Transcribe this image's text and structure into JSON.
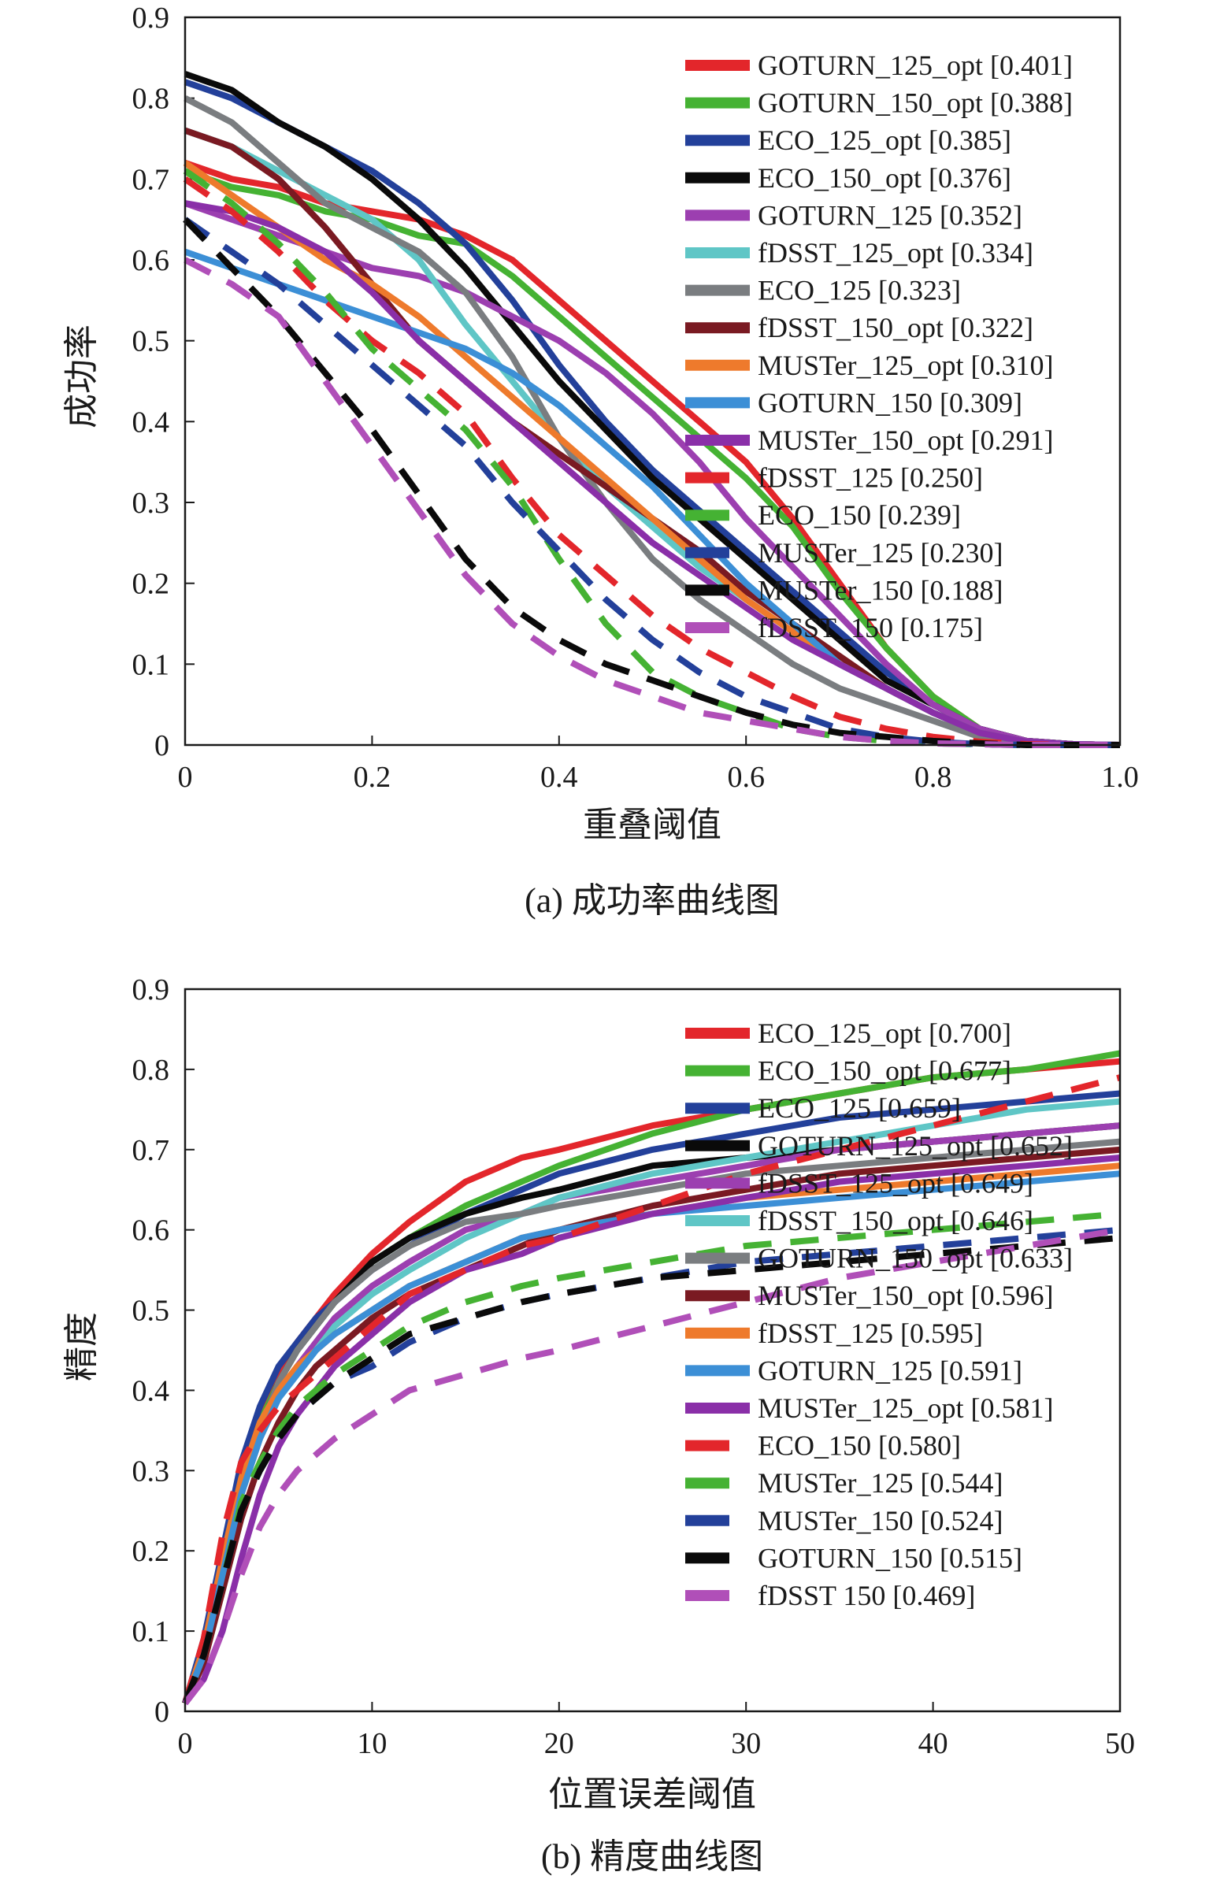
{
  "chart_data": [
    {
      "type": "line",
      "xlabel": "重叠阈值",
      "ylabel": "成功率",
      "caption": "(a) 成功率曲线图",
      "xlim": [
        0,
        1
      ],
      "ylim": [
        0,
        0.9
      ],
      "xticks": [
        "0",
        "0.2",
        "0.4",
        "0.6",
        "0.8",
        "1.0"
      ],
      "yticks": [
        "0",
        "0.1",
        "0.2",
        "0.3",
        "0.4",
        "0.5",
        "0.6",
        "0.7",
        "0.8",
        "0.9"
      ],
      "legend_position": "top-right",
      "x": [
        0,
        0.05,
        0.1,
        0.15,
        0.2,
        0.25,
        0.3,
        0.35,
        0.4,
        0.45,
        0.5,
        0.55,
        0.6,
        0.65,
        0.7,
        0.75,
        0.8,
        0.85,
        0.9,
        0.95,
        1.0
      ],
      "series": [
        {
          "name": "GOTURN_125_opt [0.401]",
          "color": "#e3262b",
          "dash": false,
          "values": [
            0.72,
            0.7,
            0.69,
            0.67,
            0.66,
            0.65,
            0.63,
            0.6,
            0.55,
            0.5,
            0.45,
            0.4,
            0.35,
            0.28,
            0.2,
            0.12,
            0.06,
            0.02,
            0.005,
            0.001,
            0
          ]
        },
        {
          "name": "GOTURN_150_opt [0.388]",
          "color": "#45b233",
          "dash": false,
          "values": [
            0.71,
            0.69,
            0.68,
            0.66,
            0.65,
            0.63,
            0.62,
            0.58,
            0.53,
            0.48,
            0.43,
            0.38,
            0.33,
            0.27,
            0.19,
            0.12,
            0.06,
            0.02,
            0.005,
            0.001,
            0
          ]
        },
        {
          "name": "ECO_125_opt [0.385]",
          "color": "#23409a",
          "dash": false,
          "values": [
            0.82,
            0.8,
            0.77,
            0.74,
            0.71,
            0.67,
            0.62,
            0.55,
            0.47,
            0.4,
            0.34,
            0.29,
            0.24,
            0.19,
            0.14,
            0.09,
            0.05,
            0.02,
            0.005,
            0.001,
            0
          ]
        },
        {
          "name": "ECO_150_opt [0.376]",
          "color": "#0a0a0a",
          "dash": false,
          "values": [
            0.83,
            0.81,
            0.77,
            0.74,
            0.7,
            0.65,
            0.59,
            0.52,
            0.45,
            0.39,
            0.33,
            0.28,
            0.23,
            0.18,
            0.13,
            0.08,
            0.05,
            0.02,
            0.005,
            0.001,
            0
          ]
        },
        {
          "name": "GOTURN_125 [0.352]",
          "color": "#9c3fb0",
          "dash": false,
          "values": [
            0.67,
            0.65,
            0.63,
            0.61,
            0.59,
            0.58,
            0.56,
            0.53,
            0.5,
            0.46,
            0.41,
            0.35,
            0.28,
            0.22,
            0.16,
            0.1,
            0.05,
            0.02,
            0.005,
            0.001,
            0
          ]
        },
        {
          "name": "fDSST_125_opt [0.334]",
          "color": "#5fc6c6",
          "dash": false,
          "values": [
            0.76,
            0.74,
            0.71,
            0.68,
            0.65,
            0.6,
            0.52,
            0.45,
            0.38,
            0.32,
            0.27,
            0.22,
            0.18,
            0.14,
            0.1,
            0.07,
            0.04,
            0.015,
            0.004,
            0.001,
            0
          ]
        },
        {
          "name": "ECO_125 [0.323]",
          "color": "#7a7d80",
          "dash": false,
          "values": [
            0.8,
            0.77,
            0.72,
            0.67,
            0.64,
            0.61,
            0.56,
            0.48,
            0.38,
            0.3,
            0.23,
            0.18,
            0.14,
            0.1,
            0.07,
            0.05,
            0.03,
            0.01,
            0.003,
            0.001,
            0
          ]
        },
        {
          "name": "fDSST_150_opt [0.322]",
          "color": "#7a1a22",
          "dash": false,
          "values": [
            0.76,
            0.74,
            0.7,
            0.64,
            0.57,
            0.5,
            0.45,
            0.4,
            0.36,
            0.32,
            0.28,
            0.24,
            0.19,
            0.15,
            0.11,
            0.07,
            0.04,
            0.015,
            0.004,
            0.001,
            0
          ]
        },
        {
          "name": "MUSTer_125_opt [0.310]",
          "color": "#ee7a2c",
          "dash": false,
          "values": [
            0.72,
            0.68,
            0.64,
            0.6,
            0.57,
            0.53,
            0.48,
            0.43,
            0.38,
            0.33,
            0.28,
            0.23,
            0.18,
            0.14,
            0.1,
            0.07,
            0.04,
            0.015,
            0.004,
            0.001,
            0
          ]
        },
        {
          "name": "GOTURN_150 [0.309]",
          "color": "#3c8fd6",
          "dash": false,
          "values": [
            0.61,
            0.59,
            0.57,
            0.55,
            0.53,
            0.51,
            0.49,
            0.46,
            0.42,
            0.37,
            0.32,
            0.26,
            0.2,
            0.15,
            0.1,
            0.07,
            0.04,
            0.015,
            0.004,
            0.001,
            0
          ]
        },
        {
          "name": "MUSTer_150_opt [0.291]",
          "color": "#8a2fa8",
          "dash": false,
          "values": [
            0.67,
            0.66,
            0.64,
            0.61,
            0.56,
            0.5,
            0.45,
            0.4,
            0.35,
            0.3,
            0.25,
            0.21,
            0.17,
            0.13,
            0.1,
            0.07,
            0.04,
            0.015,
            0.004,
            0.001,
            0
          ]
        },
        {
          "name": "fDSST_125 [0.250]",
          "color": "#e3262b",
          "dash": true,
          "values": [
            0.7,
            0.66,
            0.61,
            0.55,
            0.5,
            0.46,
            0.41,
            0.33,
            0.26,
            0.21,
            0.16,
            0.12,
            0.09,
            0.06,
            0.035,
            0.02,
            0.01,
            0.004,
            0.001,
            0,
            0
          ]
        },
        {
          "name": "ECO_150 [0.239]",
          "color": "#45b233",
          "dash": true,
          "values": [
            0.71,
            0.67,
            0.62,
            0.56,
            0.49,
            0.44,
            0.39,
            0.32,
            0.23,
            0.15,
            0.09,
            0.06,
            0.04,
            0.02,
            0.01,
            0.005,
            0.002,
            0.001,
            0,
            0,
            0
          ]
        },
        {
          "name": "MUSTer_125 [0.230]",
          "color": "#23409a",
          "dash": true,
          "values": [
            0.65,
            0.61,
            0.57,
            0.52,
            0.47,
            0.42,
            0.37,
            0.3,
            0.24,
            0.18,
            0.13,
            0.09,
            0.06,
            0.04,
            0.02,
            0.01,
            0.004,
            0.001,
            0,
            0,
            0
          ]
        },
        {
          "name": "MUSTer_150 [0.188]",
          "color": "#0a0a0a",
          "dash": true,
          "values": [
            0.65,
            0.59,
            0.53,
            0.46,
            0.39,
            0.31,
            0.23,
            0.17,
            0.13,
            0.1,
            0.08,
            0.06,
            0.04,
            0.025,
            0.015,
            0.01,
            0.005,
            0.002,
            0,
            0,
            0
          ]
        },
        {
          "name": "fDSST_150 [0.175]",
          "color": "#b04fb8",
          "dash": true,
          "values": [
            0.6,
            0.57,
            0.53,
            0.45,
            0.37,
            0.29,
            0.21,
            0.15,
            0.11,
            0.08,
            0.06,
            0.04,
            0.03,
            0.02,
            0.01,
            0.005,
            0.002,
            0.001,
            0,
            0,
            0
          ]
        }
      ]
    },
    {
      "type": "line",
      "xlabel": "位置误差阈值",
      "ylabel": "精度",
      "caption": "(b) 精度曲线图",
      "xlim": [
        0,
        50
      ],
      "ylim": [
        0,
        0.9
      ],
      "xticks": [
        "0",
        "10",
        "20",
        "30",
        "40",
        "50"
      ],
      "yticks": [
        "0",
        "0.1",
        "0.2",
        "0.3",
        "0.4",
        "0.5",
        "0.6",
        "0.7",
        "0.8",
        "0.9"
      ],
      "legend_position": "top-right",
      "x": [
        0,
        1,
        2,
        3,
        4,
        5,
        6,
        7,
        8,
        10,
        12,
        15,
        18,
        20,
        25,
        30,
        35,
        40,
        45,
        50
      ],
      "series": [
        {
          "name": "ECO_125_opt [0.700]",
          "color": "#e3262b",
          "dash": false,
          "values": [
            0.01,
            0.08,
            0.19,
            0.3,
            0.37,
            0.42,
            0.46,
            0.49,
            0.52,
            0.57,
            0.61,
            0.66,
            0.69,
            0.7,
            0.73,
            0.75,
            0.77,
            0.79,
            0.8,
            0.81
          ]
        },
        {
          "name": "ECO_150_opt [0.677]",
          "color": "#45b233",
          "dash": false,
          "values": [
            0.01,
            0.08,
            0.19,
            0.29,
            0.36,
            0.41,
            0.45,
            0.48,
            0.51,
            0.56,
            0.59,
            0.63,
            0.66,
            0.68,
            0.72,
            0.75,
            0.77,
            0.79,
            0.8,
            0.82
          ]
        },
        {
          "name": "ECO_125 [0.659]",
          "color": "#23409a",
          "dash": false,
          "values": [
            0.01,
            0.09,
            0.2,
            0.31,
            0.38,
            0.43,
            0.46,
            0.49,
            0.51,
            0.55,
            0.58,
            0.62,
            0.65,
            0.67,
            0.7,
            0.72,
            0.74,
            0.75,
            0.76,
            0.77
          ]
        },
        {
          "name": "GOTURN_125_opt [0.652]",
          "color": "#0a0a0a",
          "dash": false,
          "values": [
            0.01,
            0.07,
            0.17,
            0.27,
            0.35,
            0.41,
            0.45,
            0.48,
            0.51,
            0.56,
            0.59,
            0.62,
            0.64,
            0.65,
            0.68,
            0.69,
            0.7,
            0.71,
            0.72,
            0.73
          ]
        },
        {
          "name": "fDSST_125_opt [0.649]",
          "color": "#9c3fb0",
          "dash": false,
          "values": [
            0.01,
            0.07,
            0.17,
            0.27,
            0.34,
            0.39,
            0.43,
            0.46,
            0.49,
            0.53,
            0.56,
            0.6,
            0.62,
            0.64,
            0.66,
            0.68,
            0.7,
            0.71,
            0.72,
            0.73
          ]
        },
        {
          "name": "fDSST_150_opt [0.646]",
          "color": "#5fc6c6",
          "dash": false,
          "values": [
            0.01,
            0.07,
            0.17,
            0.27,
            0.34,
            0.39,
            0.42,
            0.45,
            0.48,
            0.52,
            0.55,
            0.59,
            0.62,
            0.64,
            0.67,
            0.69,
            0.71,
            0.73,
            0.75,
            0.76
          ]
        },
        {
          "name": "GOTURN_150_opt [0.633]",
          "color": "#7a7d80",
          "dash": false,
          "values": [
            0.01,
            0.07,
            0.17,
            0.27,
            0.35,
            0.41,
            0.45,
            0.48,
            0.51,
            0.55,
            0.58,
            0.61,
            0.62,
            0.63,
            0.65,
            0.67,
            0.68,
            0.69,
            0.7,
            0.71
          ]
        },
        {
          "name": "MUSTer_150_opt [0.596]",
          "color": "#7a1a22",
          "dash": false,
          "values": [
            0.01,
            0.06,
            0.15,
            0.24,
            0.31,
            0.36,
            0.4,
            0.43,
            0.45,
            0.49,
            0.52,
            0.55,
            0.58,
            0.6,
            0.63,
            0.65,
            0.67,
            0.68,
            0.69,
            0.7
          ]
        },
        {
          "name": "fDSST_125 [0.595]",
          "color": "#ee7a2c",
          "dash": false,
          "values": [
            0.01,
            0.08,
            0.19,
            0.29,
            0.36,
            0.4,
            0.43,
            0.45,
            0.47,
            0.5,
            0.53,
            0.56,
            0.59,
            0.6,
            0.62,
            0.64,
            0.65,
            0.66,
            0.67,
            0.68
          ]
        },
        {
          "name": "GOTURN_125 [0.591]",
          "color": "#3c8fd6",
          "dash": false,
          "values": [
            0.01,
            0.07,
            0.17,
            0.27,
            0.34,
            0.39,
            0.42,
            0.45,
            0.47,
            0.5,
            0.53,
            0.56,
            0.59,
            0.6,
            0.62,
            0.63,
            0.64,
            0.65,
            0.66,
            0.67
          ]
        },
        {
          "name": "MUSTer_125_opt [0.581]",
          "color": "#8a2fa8",
          "dash": false,
          "values": [
            0.01,
            0.04,
            0.1,
            0.19,
            0.27,
            0.33,
            0.37,
            0.4,
            0.43,
            0.47,
            0.51,
            0.55,
            0.57,
            0.59,
            0.62,
            0.64,
            0.66,
            0.67,
            0.68,
            0.69
          ]
        },
        {
          "name": "ECO_150 [0.580]",
          "color": "#e3262b",
          "dash": true,
          "values": [
            0.01,
            0.09,
            0.22,
            0.31,
            0.35,
            0.38,
            0.4,
            0.42,
            0.44,
            0.48,
            0.52,
            0.55,
            0.58,
            0.59,
            0.63,
            0.67,
            0.7,
            0.73,
            0.76,
            0.79
          ]
        },
        {
          "name": "MUSTer_125 [0.544]",
          "color": "#45b233",
          "dash": true,
          "values": [
            0.01,
            0.07,
            0.16,
            0.26,
            0.31,
            0.35,
            0.38,
            0.4,
            0.42,
            0.45,
            0.48,
            0.51,
            0.53,
            0.54,
            0.56,
            0.58,
            0.59,
            0.6,
            0.61,
            0.62
          ]
        },
        {
          "name": "MUSTer_150 [0.524]",
          "color": "#23409a",
          "dash": true,
          "values": [
            0.01,
            0.07,
            0.16,
            0.25,
            0.3,
            0.34,
            0.37,
            0.39,
            0.41,
            0.43,
            0.46,
            0.49,
            0.51,
            0.52,
            0.54,
            0.56,
            0.57,
            0.58,
            0.59,
            0.6
          ]
        },
        {
          "name": "GOTURN_150 [0.515]",
          "color": "#0a0a0a",
          "dash": true,
          "values": [
            0.01,
            0.07,
            0.16,
            0.25,
            0.3,
            0.34,
            0.37,
            0.39,
            0.41,
            0.44,
            0.47,
            0.49,
            0.51,
            0.52,
            0.54,
            0.55,
            0.56,
            0.57,
            0.58,
            0.59
          ]
        },
        {
          "name": "fDSST 150 [0.469]",
          "color": "#b04fb8",
          "dash": true,
          "values": [
            0.01,
            0.04,
            0.1,
            0.17,
            0.23,
            0.27,
            0.3,
            0.32,
            0.34,
            0.37,
            0.4,
            0.42,
            0.44,
            0.45,
            0.48,
            0.51,
            0.54,
            0.56,
            0.58,
            0.6
          ]
        }
      ]
    }
  ]
}
